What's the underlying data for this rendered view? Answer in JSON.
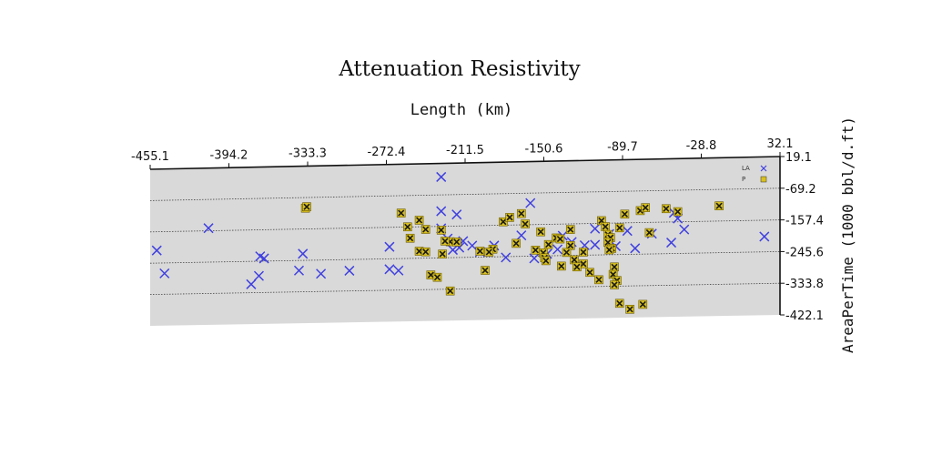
{
  "chart_data": {
    "type": "scatter",
    "title": "Attenuation Resistivity",
    "xlabel": "Length (km)",
    "ylabel": "AreaPerTime (1000 bbl/d.ft)",
    "xlim": [
      -455.1,
      32.1
    ],
    "ylim": [
      -422.1,
      19.1
    ],
    "xticks": [
      "-455.1",
      "-394.2",
      "-333.3",
      "-272.4",
      "-211.5",
      "-150.6",
      "-89.7",
      "-28.8",
      "32.1"
    ],
    "yticks": [
      "19.1",
      "-69.2",
      "-157.4",
      "-245.6",
      "-333.8",
      "-422.1"
    ],
    "grid": true,
    "legend_position": "top-right",
    "colors": {
      "LA": "#4040e0",
      "P": "#d8c020",
      "plot_background": "#d9d9d9"
    },
    "series": [
      {
        "name": "LA",
        "marker": "x",
        "points": [
          [
            -230,
            -19
          ],
          [
            -230,
            -115
          ],
          [
            -218,
            -125
          ],
          [
            -161,
            -97
          ],
          [
            -410,
            -150
          ],
          [
            -450,
            -210
          ],
          [
            -337,
            -227
          ],
          [
            -270,
            -212
          ],
          [
            -230,
            -163
          ],
          [
            -213,
            -200
          ],
          [
            -206,
            -213
          ],
          [
            -189,
            -214
          ],
          [
            -180,
            -248
          ],
          [
            -168,
            -187
          ],
          [
            -158,
            -252
          ],
          [
            -148,
            -240
          ],
          [
            -140,
            -228
          ],
          [
            -136,
            -190
          ],
          [
            -129,
            -208
          ],
          [
            -119,
            -218
          ],
          [
            -111,
            -217
          ],
          [
            -111,
            -172
          ],
          [
            -100,
            -188
          ],
          [
            -95,
            -222
          ],
          [
            -86,
            -180
          ],
          [
            -80,
            -229
          ],
          [
            -67,
            -189
          ],
          [
            -52,
            -215
          ],
          [
            -50,
            -132
          ],
          [
            -47,
            -148
          ],
          [
            -42,
            -179
          ],
          [
            20,
            -203
          ],
          [
            -370,
            -232
          ],
          [
            -367,
            -238
          ],
          [
            -377,
            -310
          ],
          [
            -323,
            -284
          ],
          [
            -301,
            -277
          ],
          [
            -444,
            -275
          ],
          [
            -371,
            -287
          ],
          [
            -340,
            -274
          ],
          [
            -270,
            -275
          ],
          [
            -263,
            -279
          ],
          [
            -216,
            -218
          ],
          [
            -225,
            -192
          ],
          [
            -221,
            -224
          ],
          [
            -200,
            -231
          ]
        ]
      },
      {
        "name": "P",
        "marker": "x-box",
        "points": [
          [
            -335,
            -99
          ],
          [
            -334,
            -95
          ],
          [
            -261,
            -118
          ],
          [
            -256,
            -157
          ],
          [
            -254,
            -189
          ],
          [
            -247,
            -139
          ],
          [
            -242,
            -165
          ],
          [
            -230,
            -168
          ],
          [
            -223,
            -201
          ],
          [
            -218,
            -202
          ],
          [
            -247,
            -226
          ],
          [
            -242,
            -228
          ],
          [
            -229,
            -235
          ],
          [
            -227,
            -199
          ],
          [
            -238,
            -293
          ],
          [
            -233,
            -300
          ],
          [
            -223,
            -339
          ],
          [
            -200,
            -229
          ],
          [
            -196,
            -283
          ],
          [
            -190,
            -224
          ],
          [
            -193,
            -232
          ],
          [
            -182,
            -148
          ],
          [
            -177,
            -136
          ],
          [
            -168,
            -126
          ],
          [
            -165,
            -155
          ],
          [
            -172,
            -209
          ],
          [
            -153,
            -178
          ],
          [
            -157,
            -229
          ],
          [
            -151,
            -237
          ],
          [
            -150,
            -251
          ],
          [
            -149,
            -259
          ],
          [
            -147,
            -214
          ],
          [
            -141,
            -196
          ],
          [
            -138,
            -199
          ],
          [
            -130,
            -173
          ],
          [
            -130,
            -218
          ],
          [
            -120,
            -237
          ],
          [
            -120,
            -270
          ],
          [
            -115,
            -294
          ],
          [
            -108,
            -315
          ],
          [
            -106,
            -150
          ],
          [
            -103,
            -167
          ],
          [
            -101,
            -189
          ],
          [
            -99,
            -198
          ],
          [
            -101,
            -211
          ],
          [
            -98,
            -228
          ],
          [
            -92,
            -171
          ],
          [
            -88,
            -133
          ],
          [
            -76,
            -124
          ],
          [
            -72,
            -116
          ],
          [
            -69,
            -186
          ],
          [
            -56,
            -120
          ],
          [
            -47,
            -129
          ],
          [
            -15,
            -115
          ],
          [
            -100,
            -232
          ],
          [
            -96,
            -280
          ],
          [
            -97,
            -301
          ],
          [
            -94,
            -318
          ],
          [
            -96,
            -330
          ],
          [
            -92,
            -382
          ],
          [
            -84,
            -399
          ],
          [
            -74,
            -386
          ],
          [
            -133,
            -237
          ],
          [
            -127,
            -258
          ],
          [
            -137,
            -275
          ],
          [
            -125,
            -278
          ]
        ]
      }
    ]
  }
}
